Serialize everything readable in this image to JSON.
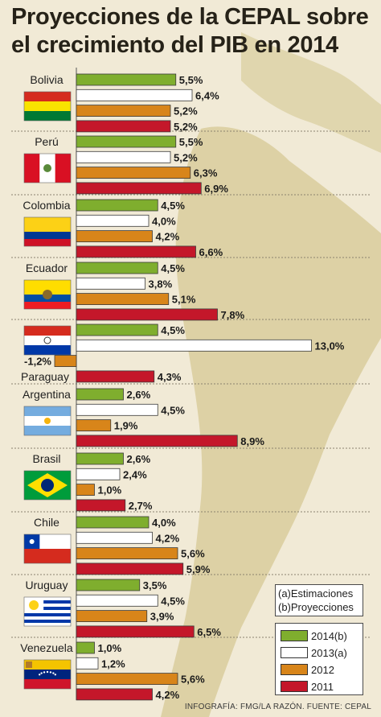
{
  "title": "Proyecciones de la CEPAL sobre el crecimiento del PIB en 2014",
  "legend_notes": [
    "(a)Estimaciones",
    "(b)Proyecciones"
  ],
  "source": "INFOGRAFÍA: FMG/LA RAZÓN. FUENTE: CEPAL",
  "colors": {
    "2014(b)": "#7fae2e",
    "2013(a)": "#ffffff",
    "2012": "#d8851a",
    "2011": "#c4172a"
  },
  "chart_data": {
    "type": "bar",
    "orientation": "horizontal",
    "unit": "%",
    "series": [
      {
        "name": "2014(b)",
        "color": "#7fae2e",
        "values": [
          5.5,
          5.5,
          4.5,
          4.5,
          4.5,
          2.6,
          2.6,
          4.0,
          3.5,
          1.0
        ]
      },
      {
        "name": "2013(a)",
        "color": "#ffffff",
        "values": [
          6.4,
          5.2,
          4.0,
          3.8,
          13.0,
          4.5,
          2.4,
          4.2,
          4.5,
          1.2
        ]
      },
      {
        "name": "2012",
        "color": "#d8851a",
        "values": [
          5.2,
          6.3,
          4.2,
          5.1,
          -1.2,
          1.9,
          1.0,
          5.6,
          3.9,
          5.6
        ]
      },
      {
        "name": "2011",
        "color": "#c4172a",
        "values": [
          5.2,
          6.9,
          6.6,
          7.8,
          4.3,
          8.9,
          2.7,
          5.9,
          6.5,
          4.2
        ]
      }
    ],
    "value_labels": [
      [
        "5,5%",
        "6,4%",
        "5,2%",
        "5,2%"
      ],
      [
        "5,5%",
        "5,2%",
        "6,3%",
        "6,9%"
      ],
      [
        "4,5%",
        "4,0%",
        "4,2%",
        "6,6%"
      ],
      [
        "4,5%",
        "3,8%",
        "5,1%",
        "7,8%"
      ],
      [
        "4,5%",
        "13,0%",
        "-1,2%",
        "4,3%"
      ],
      [
        "2,6%",
        "4,5%",
        "1,9%",
        "8,9%"
      ],
      [
        "2,6%",
        "2,4%",
        "1,0%",
        "2,7%"
      ],
      [
        "4,0%",
        "4,2%",
        "5,6%",
        "5,9%"
      ],
      [
        "3,5%",
        "4,5%",
        "3,9%",
        "6,5%"
      ],
      [
        "1,0%",
        "1,2%",
        "5,6%",
        "4,2%"
      ]
    ],
    "countries": [
      {
        "name": "Bolivia",
        "flag": "bolivia-flag"
      },
      {
        "name": "Perú",
        "flag": "peru-flag"
      },
      {
        "name": "Colombia",
        "flag": "colombia-flag"
      },
      {
        "name": "Ecuador",
        "flag": "ecuador-flag"
      },
      {
        "name": "Paraguay",
        "flag": "paraguay-flag"
      },
      {
        "name": "Argentina",
        "flag": "argentina-flag"
      },
      {
        "name": "Brasil",
        "flag": "brasil-flag"
      },
      {
        "name": "Chile",
        "flag": "chile-flag"
      },
      {
        "name": "Uruguay",
        "flag": "uruguay-flag"
      },
      {
        "name": "Venezuela",
        "flag": "venezuela-flag"
      }
    ]
  }
}
